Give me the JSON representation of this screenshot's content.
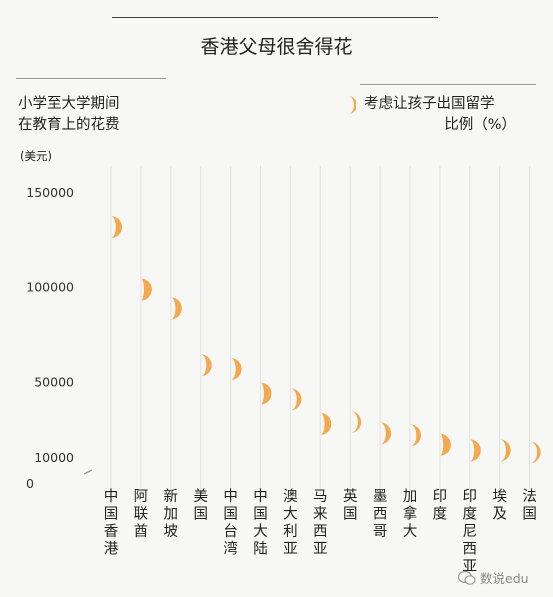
{
  "title": "香港父母很舍得花",
  "ylabel_lines": [
    "小学至大学期间",
    "在教育上的花费"
  ],
  "unit": "(美元)",
  "legend": {
    "line1": "考虑让孩子出国留学",
    "line2": "比例（%）"
  },
  "watermark": "数说edu",
  "colors": {
    "marker": "#f2a950",
    "grid": "#e1e1e1",
    "axis": "#888888"
  },
  "chart_data": {
    "type": "scatter",
    "title": "香港父母很舍得花",
    "ylabel": "小学至大学期间在教育上的花费",
    "ylim": [
      0,
      160000
    ],
    "yticks": [
      {
        "value": 150000,
        "label": "150000"
      },
      {
        "value": 100000,
        "label": "100000"
      },
      {
        "value": 50000,
        "label": "50000"
      },
      {
        "value": 10000,
        "label": "10000"
      },
      {
        "value": 0,
        "label": "0"
      }
    ],
    "categories": [
      [
        "中",
        "国",
        "香",
        "港"
      ],
      [
        "阿",
        "联",
        "酋"
      ],
      [
        "新",
        "加",
        "坡"
      ],
      [
        "美",
        "国"
      ],
      [
        "中",
        "国",
        "台",
        "湾"
      ],
      [
        "中",
        "国",
        "大",
        "陆"
      ],
      [
        "澳",
        "大",
        "利",
        "亚"
      ],
      [
        "马",
        "来",
        "西",
        "亚"
      ],
      [
        "英",
        "国"
      ],
      [
        "墨",
        "西",
        "哥"
      ],
      [
        "加",
        "拿",
        "大"
      ],
      [
        "印",
        "度"
      ],
      [
        "印",
        "度",
        "尼",
        "西",
        "亚"
      ],
      [
        "埃",
        "及"
      ],
      [
        "法",
        "国"
      ]
    ],
    "series": [
      {
        "name": "小学至大学期间在教育上的花费",
        "values": [
          132000,
          99000,
          89000,
          59000,
          57000,
          44000,
          41000,
          28000,
          29000,
          23000,
          22000,
          17000,
          14000,
          14000,
          13000
        ]
      },
      {
        "name": "考虑让孩子出国留学比例（%）",
        "values": [
          64,
          77,
          65,
          58,
          62,
          74,
          52,
          68,
          42,
          57,
          52,
          75,
          67,
          52,
          43
        ]
      }
    ]
  }
}
